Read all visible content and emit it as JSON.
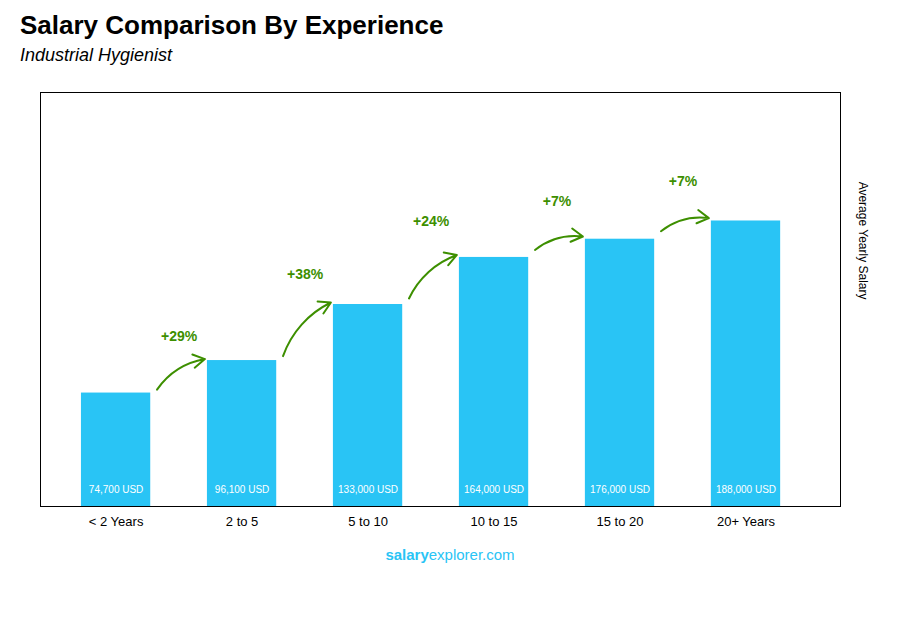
{
  "chart_data": {
    "type": "bar",
    "title": "Salary Comparison By Experience",
    "subtitle": "Industrial Hygienist",
    "ylabel": "Average Yearly Salary",
    "categories": [
      "< 2 Years",
      "2 to 5",
      "5 to 10",
      "10 to 15",
      "15 to 20",
      "20+ Years"
    ],
    "values": [
      74700,
      96100,
      133000,
      164000,
      176000,
      188000
    ],
    "value_labels": [
      "74,700 USD",
      "96,100 USD",
      "133,000 USD",
      "164,000 USD",
      "176,000 USD",
      "188,000 USD"
    ],
    "data_labels": true,
    "annotations": [
      "+29%",
      "+38%",
      "+24%",
      "+7%",
      "+7%"
    ],
    "color": "#29c4f5",
    "ylim": [
      0,
      272600
    ],
    "tick_labels": "x",
    "grid": false,
    "footer": [
      "salary",
      "explorer.com"
    ]
  }
}
